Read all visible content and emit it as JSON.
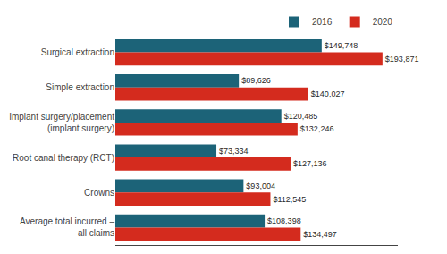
{
  "chart_data": {
    "type": "bar",
    "orientation": "horizontal",
    "categories": [
      "Surgical extraction",
      "Simple extraction",
      "Implant surgery/placement\n(implant surgery)",
      "Root canal therapy (RCT)",
      "Crowns",
      "Average total incurred –\nall claims"
    ],
    "series": [
      {
        "name": "2016",
        "color": "#1c6378",
        "values": [
          149748,
          89626,
          120485,
          73334,
          93004,
          108398
        ],
        "value_labels": [
          "$149,748",
          "$89,626",
          "$120,485",
          "$73,334",
          "$93,004",
          "$108,398"
        ]
      },
      {
        "name": "2020",
        "color": "#d42b1e",
        "values": [
          193871,
          140027,
          132246,
          127136,
          112545,
          134497
        ],
        "value_labels": [
          "$193,871",
          "$140,027",
          "$132,246",
          "$127,136",
          "$112,545",
          "$134,497"
        ]
      }
    ],
    "xlim": [
      0,
      205000
    ],
    "data_labels": true,
    "tick_labels": "y",
    "legend": "top",
    "grid": false
  }
}
